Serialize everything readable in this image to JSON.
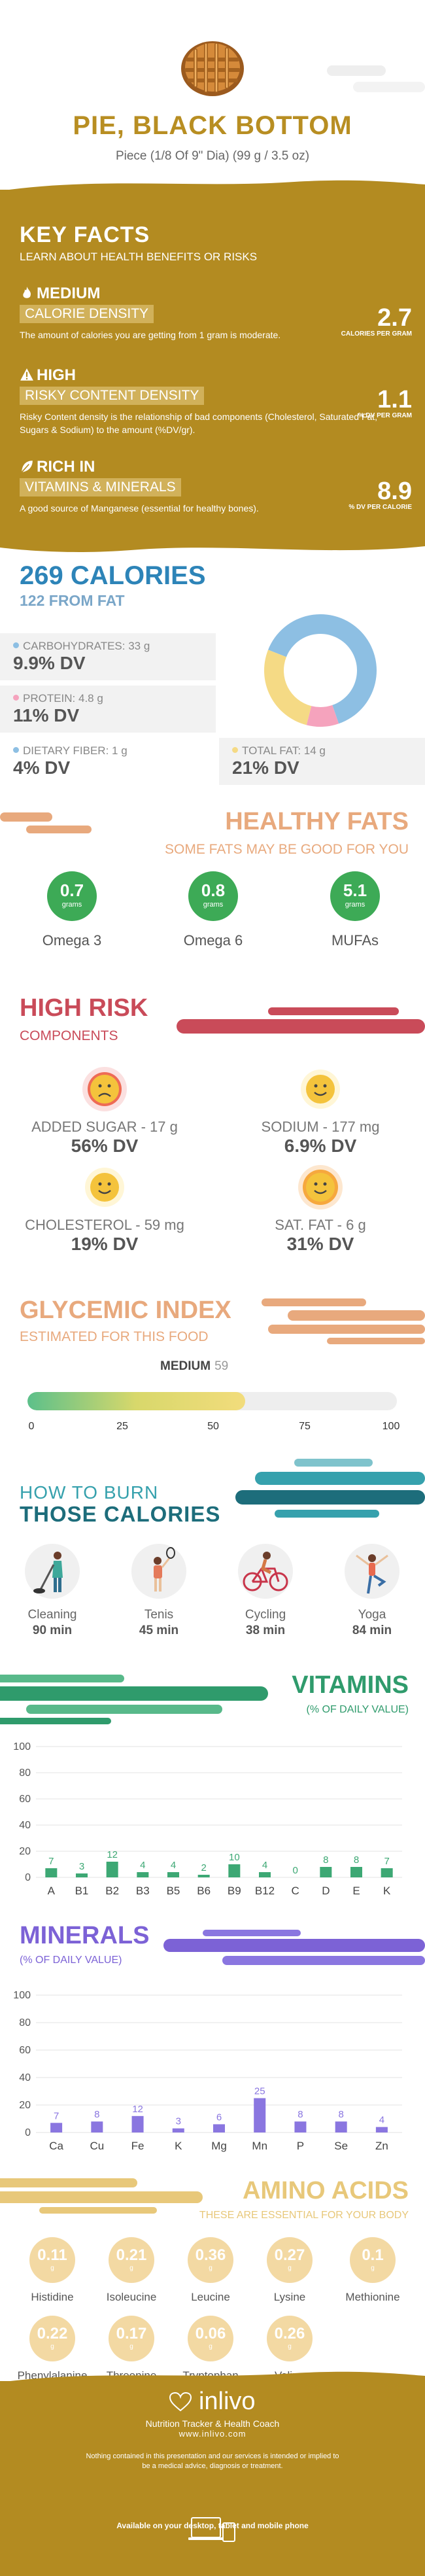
{
  "header": {
    "title": "PIE, BLACK BOTTOM",
    "subtitle": "Piece (1/8 Of 9\" Dia) (99 g / 3.5 oz)"
  },
  "key_facts": {
    "title": "KEY FACTS",
    "subtitle": "LEARN ABOUT HEALTH BENEFITS OR RISKS",
    "items": [
      {
        "icon": "flame-icon",
        "level": "MEDIUM",
        "label": "CALORIE DENSITY",
        "value": "2.7",
        "unit": "CALORIES PER GRAM",
        "desc": "The amount of calories you are getting from 1 gram is moderate."
      },
      {
        "icon": "warning-icon",
        "level": "HIGH",
        "label": "RISKY CONTENT DENSITY",
        "value": "1.1",
        "unit": "% DV PER GRAM",
        "desc": "Risky Content density is the relationship of bad components (Cholesterol, Saturated Fat, Sugars & Sodium) to the amount (%DV/gr)."
      },
      {
        "icon": "leaf-icon",
        "level": "RICH  IN",
        "label": "VITAMINS & MINERALS",
        "value": "8.9",
        "unit": "% DV PER CALORIE",
        "desc": "A good source of Manganese (essential for healthy bones)."
      }
    ]
  },
  "calories": {
    "title": "269 CALORIES",
    "subtitle": "122 FROM FAT",
    "carbs": {
      "label": "CARBOHYDRATES: 33 g",
      "value": "9.9% DV",
      "color": "#8dbfe3"
    },
    "protein": {
      "label": "PROTEIN: 4.8 g",
      "value": "11% DV",
      "color": "#f5a3bd"
    },
    "fiber": {
      "label": "DIETARY FIBER: 1 g",
      "value": "4% DV",
      "color": "#8dbfe3"
    },
    "fat": {
      "label": "TOTAL FAT: 14 g",
      "value": "21% DV",
      "color": "#f5da85"
    },
    "donut": [
      {
        "name": "carbs",
        "grams": 33,
        "color": "#8dbfe3"
      },
      {
        "name": "protein",
        "grams": 4.8,
        "color": "#f5a3bd"
      },
      {
        "name": "fat",
        "grams": 14,
        "color": "#f5da85"
      }
    ]
  },
  "healthy_fats": {
    "title": "HEALTHY FATS",
    "subtitle": "SOME FATS MAY BE GOOD FOR YOU",
    "items": [
      {
        "value": "0.7",
        "unit": "grams",
        "label": "Omega 3"
      },
      {
        "value": "0.8",
        "unit": "grams",
        "label": "Omega 6"
      },
      {
        "value": "5.1",
        "unit": "grams",
        "label": "MUFAs"
      }
    ]
  },
  "high_risk": {
    "title": "HIGH RISK",
    "subtitle": "COMPONENTS",
    "items": [
      {
        "label": "ADDED SUGAR - 17 g",
        "value": "56% DV",
        "face": "sad"
      },
      {
        "label": "SODIUM - 177 mg",
        "value": "6.9% DV",
        "face": "happy"
      },
      {
        "label": "CHOLESTEROL - 59 mg",
        "value": "19% DV",
        "face": "happy"
      },
      {
        "label": "SAT. FAT - 6 g",
        "value": "31% DV",
        "face": "happy"
      }
    ]
  },
  "glycemic": {
    "title": "GLYCEMIC INDEX",
    "subtitle": "ESTIMATED FOR THIS FOOD",
    "level": "MEDIUM",
    "value": "59",
    "ticks": [
      "0",
      "25",
      "50",
      "75",
      "100"
    ]
  },
  "burn": {
    "title1": "HOW TO BURN",
    "title2": "THOSE CALORIES",
    "items": [
      {
        "name": "Cleaning",
        "minutes": "90 min",
        "icon": "cleaning-icon"
      },
      {
        "name": "Tenis",
        "minutes": "45 min",
        "icon": "tennis-icon"
      },
      {
        "name": "Cycling",
        "minutes": "38 min",
        "icon": "cycling-icon"
      },
      {
        "name": "Yoga",
        "minutes": "84 min",
        "icon": "yoga-icon"
      }
    ]
  },
  "vitamins": {
    "title": "VITAMINS",
    "subtitle": "(% OF DAILY VALUE)"
  },
  "minerals": {
    "title": "MINERALS",
    "subtitle": "(% OF DAILY VALUE)"
  },
  "chart_data": [
    {
      "type": "bar",
      "categories": [
        "A",
        "B1",
        "B2",
        "B3",
        "B5",
        "B6",
        "B9",
        "B12",
        "C",
        "D",
        "E",
        "K"
      ],
      "values": [
        7,
        3,
        12,
        4,
        4,
        2,
        10,
        4,
        0,
        8,
        8,
        7
      ],
      "yticks": [
        "0",
        "20",
        "40",
        "60",
        "80",
        "100"
      ],
      "ylim": [
        0,
        100
      ],
      "color": "#3da874"
    },
    {
      "type": "bar",
      "categories": [
        "Ca",
        "Cu",
        "Fe",
        "K",
        "Mg",
        "Mn",
        "P",
        "Se",
        "Zn"
      ],
      "values": [
        7,
        8,
        12,
        3,
        6,
        25,
        8,
        8,
        4
      ],
      "yticks": [
        "0",
        "20",
        "40",
        "60",
        "80",
        "100"
      ],
      "ylim": [
        0,
        100
      ],
      "color": "#8a76e0"
    }
  ],
  "amino": {
    "title": "AMINO ACIDS",
    "subtitle": "THESE ARE ESSENTIAL FOR YOUR BODY",
    "unit": "g",
    "items": [
      {
        "value": "0.11",
        "name": "Histidine"
      },
      {
        "value": "0.21",
        "name": "Isoleucine"
      },
      {
        "value": "0.36",
        "name": "Leucine"
      },
      {
        "value": "0.27",
        "name": "Lysine"
      },
      {
        "value": "0.1",
        "name": "Methionine"
      },
      {
        "value": "0.22",
        "name": "Phenylalanine"
      },
      {
        "value": "0.17",
        "name": "Threonine"
      },
      {
        "value": "0.06",
        "name": "Tryptophan"
      },
      {
        "value": "0.26",
        "name": "Valine"
      }
    ]
  },
  "footer": {
    "logo": "inlivo",
    "tagline": "Nutrition Tracker & Health Coach",
    "url": "www.inlivo.com",
    "disclaimer": "Nothing contained in this presentation and our services is intended or implied to be a medical advice, diagnosis or treatment.",
    "available": "Available on your desktop, tablet and mobile phone"
  }
}
